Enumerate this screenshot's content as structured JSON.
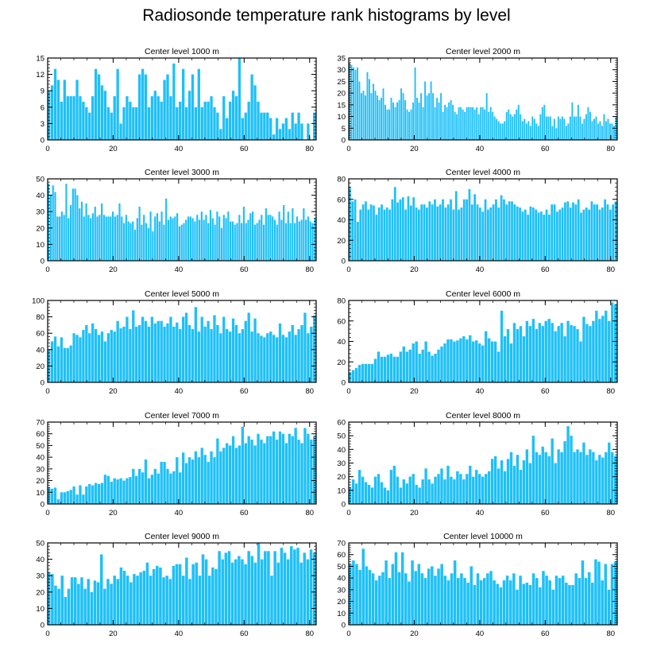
{
  "figure": {
    "title": "Radiosonde temperature rank histograms by level",
    "bar_color": "#1ec0f8",
    "frame_color": "#000000"
  },
  "chart_data": [
    {
      "type": "bar",
      "title": "Center level 1000 m",
      "xlim": [
        0,
        82
      ],
      "xticks": [
        0,
        20,
        40,
        60,
        80
      ],
      "ylim": [
        0,
        15
      ],
      "yticks": [
        0,
        3,
        6,
        9,
        12,
        15
      ],
      "values": [
        9,
        10,
        13,
        11,
        7,
        11,
        8,
        8,
        8,
        11,
        8,
        7,
        6,
        5,
        8,
        13,
        12,
        10,
        9,
        6,
        5,
        8,
        13,
        3,
        6,
        8,
        7,
        6,
        6,
        12,
        13,
        12,
        6,
        8,
        9,
        8,
        7,
        11,
        12,
        8,
        14,
        6,
        7,
        13,
        6,
        9,
        12,
        6,
        13,
        6,
        7,
        7,
        8,
        6,
        5,
        2,
        8,
        4,
        7,
        9,
        8,
        15,
        4,
        5,
        7,
        12,
        10,
        7,
        5,
        5,
        5,
        4,
        1,
        4,
        2,
        3,
        4,
        2,
        5,
        3,
        5,
        3,
        0,
        3,
        0,
        5
      ]
    },
    {
      "type": "bar",
      "title": "Center level 2000 m",
      "xlim": [
        0,
        82
      ],
      "xticks": [
        0,
        20,
        40,
        60,
        80
      ],
      "ylim": [
        0,
        35
      ],
      "yticks": [
        0,
        5,
        10,
        15,
        20,
        25,
        30,
        35
      ],
      "values": [
        33,
        32,
        31,
        30,
        31,
        25,
        20,
        21,
        19,
        29,
        26,
        20,
        24,
        21,
        19,
        17,
        18,
        22,
        15,
        13,
        13,
        18,
        16,
        14,
        16,
        17,
        22,
        20,
        17,
        13,
        12,
        13,
        16,
        31,
        18,
        16,
        20,
        14,
        25,
        19,
        20,
        25,
        20,
        14,
        18,
        16,
        20,
        12,
        15,
        14,
        16,
        17,
        15,
        12,
        11,
        14,
        14,
        13,
        12,
        14,
        14,
        14,
        14,
        13,
        14,
        11,
        14,
        14,
        13,
        20,
        12,
        14,
        12,
        10,
        9,
        8,
        7,
        7,
        8,
        12,
        13,
        11,
        10,
        11,
        13,
        15,
        11,
        8,
        9,
        7,
        8,
        6,
        10,
        9,
        7,
        6,
        11,
        14,
        15,
        10,
        10,
        10,
        6,
        9,
        5,
        10,
        9,
        10,
        9,
        6,
        7,
        10,
        16,
        10,
        10,
        15,
        10,
        7,
        9,
        11,
        14,
        12,
        8,
        9,
        10,
        7,
        8,
        6,
        11,
        8,
        9,
        7,
        7,
        6,
        10
      ]
    },
    {
      "type": "bar",
      "title": "Center level 3000 m",
      "xlim": [
        0,
        82
      ],
      "xticks": [
        0,
        20,
        40,
        60,
        80
      ],
      "ylim": [
        0,
        50
      ],
      "yticks": [
        0,
        10,
        20,
        30,
        40,
        50
      ],
      "values": [
        47,
        40,
        46,
        42,
        27,
        27,
        30,
        28,
        47,
        26,
        34,
        44,
        44,
        40,
        32,
        36,
        27,
        35,
        28,
        26,
        29,
        33,
        27,
        28,
        35,
        28,
        27,
        27,
        27,
        30,
        27,
        28,
        35,
        27,
        23,
        28,
        24,
        23,
        24,
        19,
        26,
        33,
        22,
        28,
        23,
        20,
        30,
        18,
        27,
        29,
        24,
        30,
        22,
        38,
        25,
        27,
        26,
        27,
        29,
        21,
        22,
        23,
        25,
        27,
        27,
        26,
        24,
        28,
        25,
        30,
        25,
        28,
        23,
        31,
        26,
        22,
        30,
        27,
        20,
        28,
        26,
        30,
        24,
        24,
        22,
        23,
        28,
        23,
        33,
        23,
        25,
        29,
        30,
        22,
        23,
        25,
        28,
        22,
        32,
        28,
        28,
        27,
        25,
        22,
        30,
        25,
        34,
        23,
        30,
        23,
        32,
        23,
        27,
        24,
        25,
        32,
        25,
        27,
        24,
        23,
        26
      ]
    },
    {
      "type": "bar",
      "title": "Center level 4000 m",
      "xlim": [
        0,
        82
      ],
      "xticks": [
        0,
        20,
        40,
        60,
        80
      ],
      "ylim": [
        0,
        80
      ],
      "yticks": [
        0,
        20,
        40,
        60,
        80
      ],
      "values": [
        72,
        58,
        60,
        38,
        50,
        55,
        58,
        50,
        55,
        54,
        45,
        52,
        55,
        50,
        52,
        50,
        60,
        72,
        57,
        60,
        62,
        50,
        63,
        54,
        62,
        52,
        50,
        55,
        55,
        52,
        58,
        55,
        60,
        53,
        55,
        60,
        52,
        55,
        60,
        50,
        68,
        50,
        52,
        60,
        60,
        70,
        55,
        65,
        55,
        52,
        48,
        60,
        50,
        52,
        55,
        60,
        52,
        64,
        60,
        55,
        58,
        58,
        55,
        53,
        52,
        48,
        50,
        45,
        53,
        52,
        50,
        47,
        48,
        45,
        50,
        45,
        55,
        55,
        48,
        50,
        52,
        57,
        58,
        52,
        57,
        55,
        60,
        47,
        50,
        52,
        50,
        58,
        55,
        55,
        50,
        52,
        60,
        55,
        50,
        55,
        58
      ]
    },
    {
      "type": "bar",
      "title": "Center level 5000 m",
      "xlim": [
        0,
        82
      ],
      "xticks": [
        0,
        20,
        40,
        60,
        80
      ],
      "ylim": [
        0,
        100
      ],
      "yticks": [
        0,
        20,
        40,
        60,
        80,
        100
      ],
      "values": [
        40,
        50,
        56,
        44,
        55,
        42,
        42,
        45,
        60,
        58,
        55,
        64,
        70,
        60,
        72,
        65,
        58,
        62,
        50,
        60,
        64,
        62,
        75,
        66,
        68,
        80,
        65,
        88,
        68,
        70,
        80,
        75,
        68,
        80,
        72,
        75,
        75,
        68,
        72,
        80,
        68,
        73,
        65,
        80,
        85,
        70,
        65,
        92,
        62,
        80,
        68,
        75,
        65,
        82,
        70,
        60,
        80,
        65,
        62,
        78,
        70,
        60,
        65,
        75,
        85,
        62,
        78,
        60,
        57,
        55,
        60,
        62,
        58,
        55,
        72,
        58,
        55,
        62,
        70,
        58,
        65,
        70,
        85,
        60,
        68,
        82
      ]
    },
    {
      "type": "bar",
      "title": "Center level 6000 m",
      "xlim": [
        0,
        82
      ],
      "xticks": [
        0,
        20,
        40,
        60,
        80
      ],
      "ylim": [
        0,
        80
      ],
      "yticks": [
        0,
        20,
        40,
        60,
        80
      ],
      "values": [
        10,
        12,
        14,
        17,
        18,
        18,
        18,
        18,
        23,
        30,
        25,
        25,
        27,
        28,
        25,
        25,
        30,
        35,
        30,
        32,
        38,
        40,
        28,
        32,
        40,
        30,
        26,
        28,
        32,
        35,
        38,
        42,
        42,
        40,
        41,
        43,
        45,
        42,
        46,
        40,
        41,
        38,
        36,
        50,
        43,
        40,
        40,
        30,
        70,
        45,
        52,
        38,
        58,
        52,
        55,
        45,
        60,
        55,
        62,
        52,
        58,
        55,
        60,
        62,
        58,
        50,
        55,
        58,
        45,
        60,
        56,
        55,
        52,
        40,
        64,
        57,
        55,
        60,
        70,
        62,
        65,
        70,
        60,
        78,
        76
      ]
    },
    {
      "type": "bar",
      "title": "Center level 7000 m",
      "xlim": [
        0,
        82
      ],
      "xticks": [
        0,
        20,
        40,
        60,
        80
      ],
      "ylim": [
        0,
        70
      ],
      "yticks": [
        0,
        10,
        20,
        30,
        40,
        50,
        60,
        70
      ],
      "values": [
        14,
        13,
        14,
        4,
        10,
        10,
        11,
        12,
        15,
        8,
        16,
        8,
        15,
        17,
        16,
        18,
        17,
        18,
        25,
        24,
        19,
        22,
        21,
        22,
        20,
        22,
        23,
        30,
        24,
        30,
        27,
        38,
        22,
        25,
        30,
        26,
        36,
        36,
        30,
        26,
        28,
        40,
        27,
        44,
        35,
        40,
        38,
        45,
        40,
        48,
        42,
        36,
        45,
        40,
        56,
        45,
        48,
        52,
        50,
        58,
        48,
        50,
        66,
        52,
        58,
        55,
        50,
        60,
        55,
        52,
        58,
        58,
        62,
        55,
        62,
        60,
        52,
        60,
        58,
        65,
        55,
        52,
        65,
        60,
        55,
        58
      ]
    },
    {
      "type": "bar",
      "title": "Center level 8000 m",
      "xlim": [
        0,
        82
      ],
      "xticks": [
        0,
        20,
        40,
        60,
        80
      ],
      "ylim": [
        0,
        60
      ],
      "yticks": [
        0,
        10,
        20,
        30,
        40,
        50,
        60
      ],
      "values": [
        12,
        18,
        15,
        25,
        20,
        16,
        14,
        12,
        20,
        22,
        16,
        12,
        10,
        25,
        28,
        20,
        12,
        18,
        15,
        20,
        22,
        14,
        12,
        18,
        26,
        18,
        15,
        20,
        22,
        26,
        18,
        28,
        20,
        18,
        24,
        22,
        18,
        22,
        28,
        20,
        25,
        22,
        20,
        22,
        24,
        33,
        35,
        26,
        32,
        24,
        33,
        38,
        28,
        36,
        25,
        32,
        40,
        30,
        50,
        38,
        36,
        42,
        38,
        35,
        48,
        30,
        40,
        38,
        46,
        57,
        50,
        38,
        40,
        38,
        45,
        36,
        40,
        38,
        32,
        36,
        34,
        38,
        45,
        38,
        35
      ]
    },
    {
      "type": "bar",
      "title": "Center level 9000 m",
      "xlim": [
        0,
        82
      ],
      "xticks": [
        0,
        20,
        40,
        60,
        80
      ],
      "ylim": [
        0,
        50
      ],
      "yticks": [
        0,
        10,
        20,
        30,
        40,
        50
      ],
      "values": [
        32,
        31,
        24,
        22,
        30,
        17,
        22,
        29,
        29,
        25,
        29,
        22,
        28,
        20,
        27,
        26,
        43,
        22,
        28,
        25,
        30,
        28,
        35,
        33,
        30,
        26,
        31,
        30,
        32,
        33,
        38,
        30,
        34,
        36,
        35,
        29,
        30,
        28,
        36,
        37,
        37,
        30,
        41,
        28,
        37,
        38,
        30,
        43,
        40,
        30,
        35,
        34,
        45,
        40,
        44,
        45,
        38,
        40,
        42,
        40,
        37,
        45,
        42,
        38,
        50,
        40,
        45,
        45,
        30,
        45,
        38,
        47,
        44,
        40,
        48,
        46,
        47,
        38,
        44,
        40,
        46,
        44
      ]
    },
    {
      "type": "bar",
      "title": "Center level 10000 m",
      "xlim": [
        0,
        82
      ],
      "xticks": [
        0,
        20,
        40,
        60,
        80
      ],
      "ylim": [
        0,
        70
      ],
      "yticks": [
        0,
        10,
        20,
        30,
        40,
        50,
        60,
        70
      ],
      "values": [
        52,
        55,
        52,
        47,
        65,
        50,
        47,
        44,
        38,
        42,
        45,
        55,
        40,
        52,
        62,
        45,
        62,
        44,
        37,
        55,
        46,
        52,
        44,
        40,
        48,
        50,
        42,
        48,
        52,
        42,
        38,
        44,
        55,
        40,
        44,
        40,
        36,
        50,
        34,
        44,
        38,
        40,
        44,
        46,
        38,
        35,
        32,
        38,
        42,
        38,
        44,
        30,
        42,
        35,
        36,
        34,
        44,
        40,
        32,
        46,
        42,
        38,
        30,
        42,
        40,
        42,
        36,
        34,
        34,
        44,
        40,
        55,
        40,
        45,
        36,
        56,
        54,
        38,
        52,
        30,
        52,
        54
      ]
    }
  ]
}
